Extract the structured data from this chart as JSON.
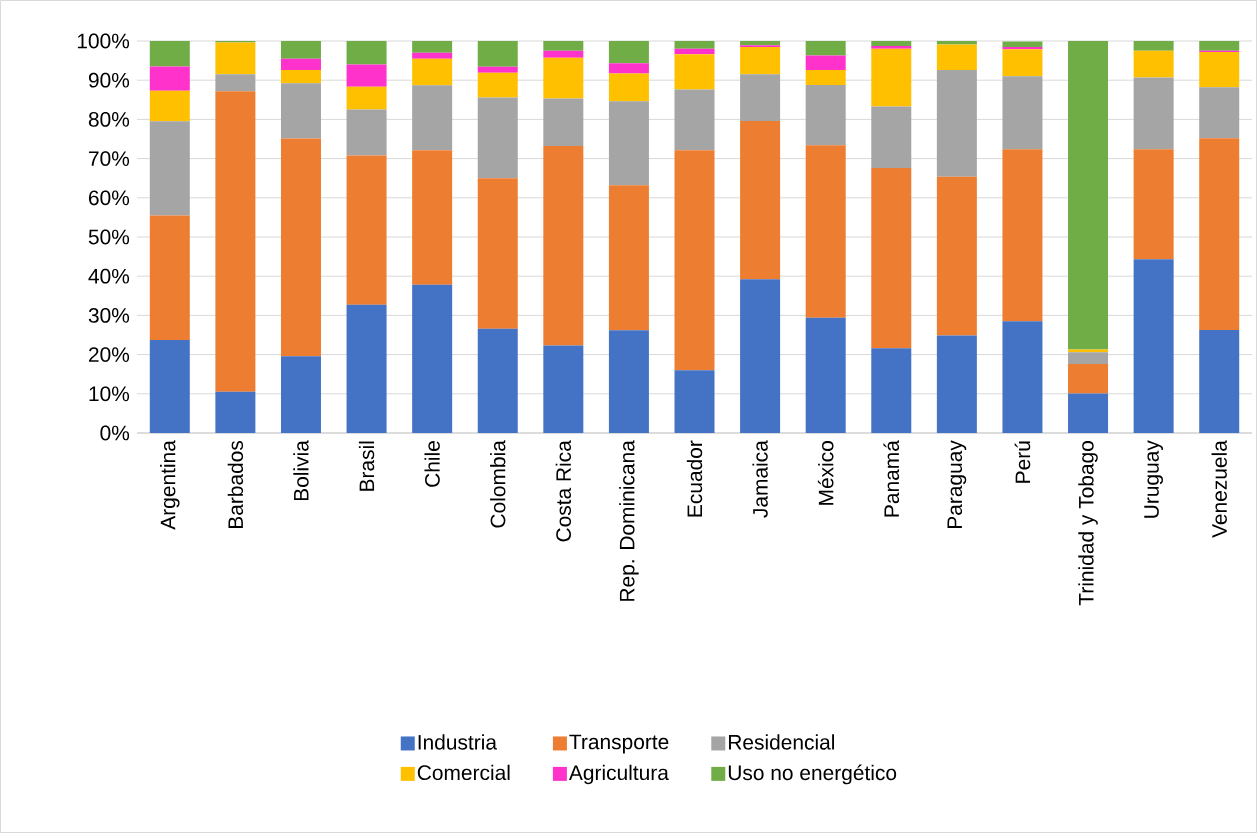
{
  "chart_data": {
    "type": "bar",
    "stacked": true,
    "categories": [
      "Argentina",
      "Barbados",
      "Bolivia",
      "Brasil",
      "Chile",
      "Colombia",
      "Costa Rica",
      "Rep. Dominicana",
      "Ecuador",
      "Jamaica",
      "México",
      "Panamá",
      "Paraguay",
      "Perú",
      "Trinidad y Tobago",
      "Uruguay",
      "Venezuela"
    ],
    "series": [
      {
        "name": "Industria",
        "color": "#4472c4",
        "values": [
          23.7,
          10.5,
          19.6,
          32.7,
          37.8,
          26.6,
          22.3,
          26.2,
          16.0,
          39.2,
          29.4,
          21.6,
          24.9,
          28.5,
          10.1,
          44.3,
          26.3
        ]
      },
      {
        "name": "Transporte",
        "color": "#ed7d31",
        "values": [
          31.8,
          76.7,
          55.5,
          38.1,
          34.3,
          38.4,
          50.9,
          37.0,
          56.1,
          40.4,
          44.0,
          46.0,
          40.5,
          43.9,
          7.5,
          28.1,
          48.9
        ]
      },
      {
        "name": "Residencial",
        "color": "#a5a5a5",
        "values": [
          24.0,
          4.3,
          14.1,
          11.7,
          16.6,
          20.6,
          12.1,
          21.4,
          15.5,
          11.9,
          15.4,
          15.7,
          27.2,
          18.6,
          3.0,
          18.3,
          13.0
        ]
      },
      {
        "name": "Comercial",
        "color": "#ffc000",
        "values": [
          7.8,
          8.1,
          3.4,
          5.8,
          6.8,
          6.3,
          10.4,
          7.1,
          9.0,
          7.0,
          3.8,
          14.7,
          6.5,
          6.9,
          0.7,
          6.8,
          9.0
        ]
      },
      {
        "name": "Agricultura",
        "color": "#ff33cc",
        "values": [
          6.2,
          0,
          2.9,
          5.7,
          1.5,
          1.5,
          1.8,
          2.6,
          1.4,
          0.4,
          3.7,
          0.7,
          0,
          0.6,
          0,
          0,
          0.3
        ]
      },
      {
        "name": "Uso no energético",
        "color": "#70ad47",
        "values": [
          6.5,
          0.4,
          4.5,
          6.0,
          3.0,
          6.6,
          2.5,
          5.7,
          2.0,
          1.1,
          3.7,
          1.3,
          0.9,
          1.4,
          78.7,
          2.5,
          2.5
        ]
      }
    ],
    "ylim": [
      0,
      100
    ],
    "yticks": [
      {
        "value": 0,
        "label": "0%"
      },
      {
        "value": 10,
        "label": "10%"
      },
      {
        "value": 20,
        "label": "20%"
      },
      {
        "value": 30,
        "label": "30%"
      },
      {
        "value": 40,
        "label": "40%"
      },
      {
        "value": 50,
        "label": "50%"
      },
      {
        "value": 60,
        "label": "60%"
      },
      {
        "value": 70,
        "label": "70%"
      },
      {
        "value": 80,
        "label": "80%"
      },
      {
        "value": 90,
        "label": "90%"
      },
      {
        "value": 100,
        "label": "100%"
      }
    ],
    "grid": "y",
    "legend": "bottom"
  }
}
